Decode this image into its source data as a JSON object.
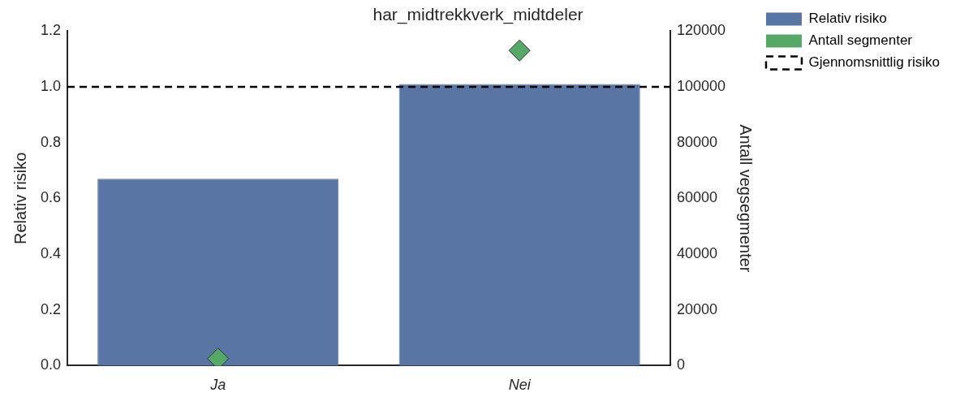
{
  "chart_data": {
    "type": "bar",
    "title": "har_midtrekkverk_midtdeler",
    "categories": [
      "Ja",
      "Nei"
    ],
    "ylabel": "Relativ risiko",
    "y2label": "Antall vegsegmenter",
    "series": [
      {
        "name": "Relativ risiko",
        "type": "bar",
        "color": "#5975a4",
        "values": [
          0.67,
          1.01
        ]
      },
      {
        "name": "Antall segmenter",
        "type": "scatter",
        "axis": "y2",
        "color": "#55a868",
        "marker": "diamond",
        "values": [
          2500,
          113000
        ]
      }
    ],
    "ylim": [
      0,
      1.2
    ],
    "yticks": [
      {
        "value": 0,
        "label": "0.0"
      },
      {
        "value": 0.2,
        "label": "0.2"
      },
      {
        "value": 0.4,
        "label": "0.4"
      },
      {
        "value": 0.6,
        "label": "0.6"
      },
      {
        "value": 0.8,
        "label": "0.8"
      },
      {
        "value": 1,
        "label": "1.0"
      },
      {
        "value": 1.2,
        "label": "1.2"
      }
    ],
    "y2lim": [
      0,
      120000
    ],
    "y2ticks": [
      0,
      20000,
      40000,
      60000,
      80000,
      100000,
      120000
    ],
    "ref_lines": [
      {
        "axis": "y",
        "value": 1,
        "label": "Gjennomsnittlig risiko",
        "color": "#000000",
        "line_style": "dashed"
      }
    ],
    "legend": "right",
    "grid": false
  }
}
